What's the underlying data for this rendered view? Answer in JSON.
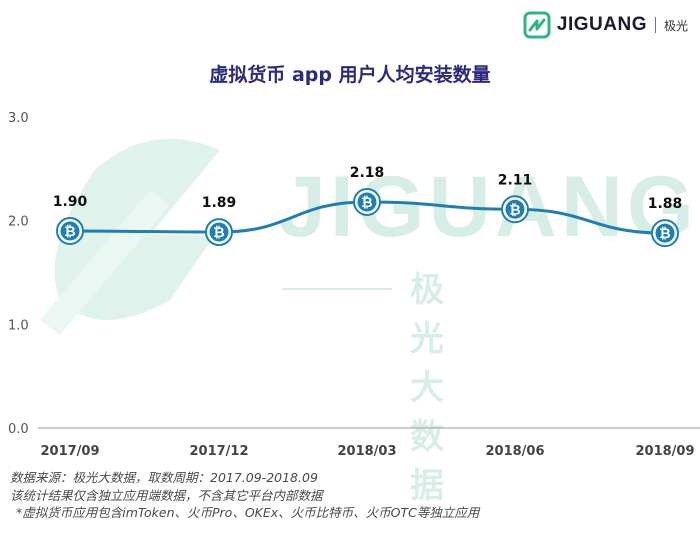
{
  "brand": {
    "name": "JIGUANG",
    "cn": "极光",
    "icon": "jiguang-logo-icon",
    "color": "#2fb38a"
  },
  "watermark": {
    "en": "JIGUANG",
    "cn": "极光大数据"
  },
  "chart_data": {
    "type": "line",
    "title": "虚拟货币 app 用户人均安装数量",
    "xlabel": "",
    "ylabel": "",
    "categories": [
      "2017/09",
      "2017/12",
      "2018/03",
      "2018/06",
      "2018/09"
    ],
    "series": [
      {
        "name": "",
        "values": [
          1.9,
          1.89,
          2.18,
          2.11,
          1.88
        ],
        "labels": [
          "1.90",
          "1.89",
          "2.18",
          "2.11",
          "1.88"
        ],
        "color": "#1f7fb5"
      }
    ],
    "ylim": [
      0,
      3
    ],
    "yticks": [
      "0.0",
      "1.0",
      "2.0",
      "3.0"
    ],
    "grid": false,
    "marker_icon": "bitcoin-icon"
  },
  "footnotes": [
    "数据来源：极光大数据，取数周期：2017.09-2018.09",
    "该统计结果仅含独立应用端数据，不含其它平台内部数据",
    "*虚拟货币应用包含imToken、火币Pro、OKEx、火币比特币、火币OTC等独立应用"
  ]
}
